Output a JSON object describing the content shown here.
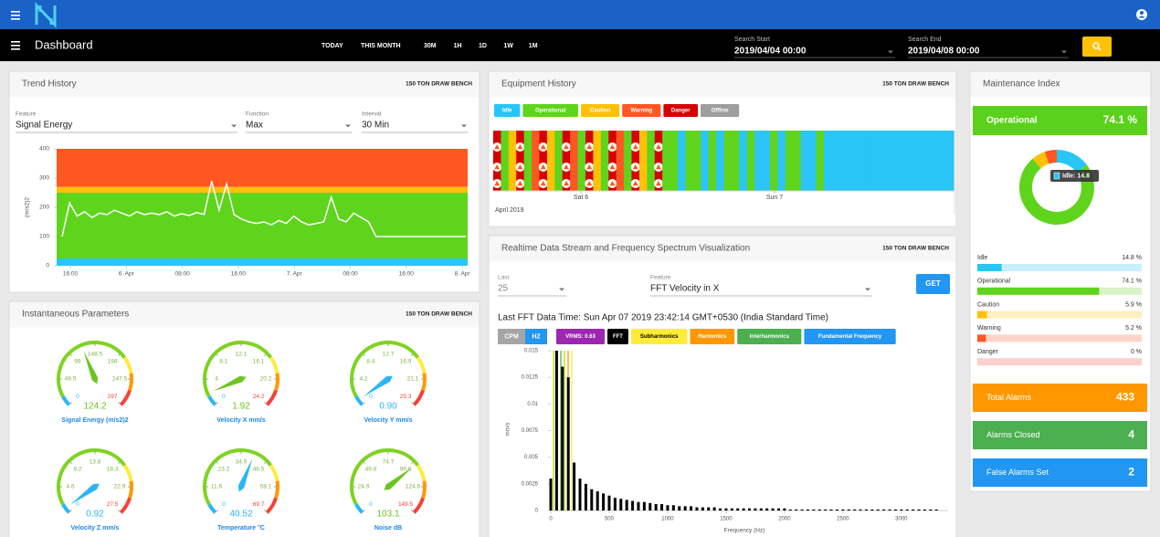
{
  "toolbar": {
    "title": "Dashboard",
    "ranges": [
      "TODAY",
      "THIS MONTH",
      "30M",
      "1H",
      "1D",
      "1W",
      "1M"
    ],
    "search_start": {
      "label": "Search Start",
      "value": "2019/04/04 00:00"
    },
    "search_end": {
      "label": "Search End",
      "value": "2019/04/08 00:00"
    }
  },
  "trend": {
    "title": "Trend History",
    "device": "150 TON DRAW BENCH",
    "filters": [
      {
        "label": "Feature",
        "value": "Signal Energy"
      },
      {
        "label": "Function",
        "value": "Max"
      },
      {
        "label": "Interval",
        "value": "30 Min"
      }
    ],
    "chart": {
      "type": "line",
      "ylabel": "(m/s2)2",
      "ylim": [
        0,
        400
      ],
      "yticks": [
        0,
        100,
        200,
        300,
        400
      ],
      "xticks": [
        "16:00",
        "6. Apr",
        "08:00",
        "16:00",
        "7. Apr",
        "08:00",
        "16:00",
        "8. Apr"
      ],
      "zones": [
        {
          "from": 0,
          "to": 25,
          "color": "#29c5f6"
        },
        {
          "from": 25,
          "to": 250,
          "color": "#5fd41c"
        },
        {
          "from": 250,
          "to": 270,
          "color": "#ffc107"
        },
        {
          "from": 270,
          "to": 400,
          "color": "#ff5722"
        }
      ],
      "color": "#ffffff",
      "values": [
        100,
        215,
        170,
        185,
        165,
        180,
        175,
        190,
        180,
        170,
        185,
        175,
        180,
        175,
        185,
        170,
        178,
        172,
        182,
        176,
        290,
        190,
        280,
        175,
        160,
        150,
        145,
        150,
        140,
        155,
        145,
        170,
        150,
        140,
        145,
        150,
        235,
        160,
        150,
        180,
        165,
        150,
        100,
        100,
        100,
        100,
        100,
        100,
        100,
        100,
        100,
        100,
        100,
        100,
        100
      ]
    }
  },
  "instant": {
    "title": "Instantaneous Parameters",
    "device": "150 TON DRAW BENCH",
    "gauges": [
      {
        "name": "Signal Energy (m/s2)2",
        "value": "124.2",
        "ticks": [
          "0",
          "49.5",
          "99",
          "148.5",
          "198",
          "247.5",
          "297"
        ],
        "color": "#6cc51f"
      },
      {
        "name": "Velocity X mm/s",
        "value": "1.92",
        "ticks": [
          "0",
          "4",
          "8.1",
          "12.1",
          "16.1",
          "20.2",
          "24.2"
        ],
        "color": "#6cc51f"
      },
      {
        "name": "Velocity Y mm/s",
        "value": "0.90",
        "ticks": [
          "0",
          "4.2",
          "8.4",
          "12.7",
          "16.9",
          "21.1",
          "25.3"
        ],
        "color": "#29b6f6"
      },
      {
        "name": "Velocity Z mm/s",
        "value": "0.92",
        "ticks": [
          "0",
          "4.6",
          "9.2",
          "13.8",
          "18.3",
          "22.9",
          "27.5"
        ],
        "color": "#29b6f6"
      },
      {
        "name": "Temperature °C",
        "value": "40.52",
        "ticks": [
          "0",
          "11.6",
          "23.2",
          "34.9",
          "46.5",
          "58.1",
          "69.7"
        ],
        "color": "#29b6f6"
      },
      {
        "name": "Noise dB",
        "value": "103.1",
        "ticks": [
          "0",
          "24.9",
          "49.8",
          "74.7",
          "99.6",
          "124.6",
          "149.5"
        ],
        "color": "#6cc51f"
      }
    ]
  },
  "equipment": {
    "title": "Equipment History",
    "device": "150 TON DRAW BENCH",
    "legend": [
      {
        "name": "Idle",
        "color": "#29c5f6"
      },
      {
        "name": "Operational",
        "color": "#5fd41c"
      },
      {
        "name": "Caution",
        "color": "#ffc107"
      },
      {
        "name": "Warning",
        "color": "#ff5722"
      },
      {
        "name": "Danger",
        "color": "#d50000"
      },
      {
        "name": "Offline",
        "color": "#9e9e9e"
      }
    ],
    "timeline": [
      "Danger",
      "Operational",
      "Caution",
      "Danger",
      "Operational",
      "Warning",
      "Danger",
      "Caution",
      "Operational",
      "Danger",
      "Warning",
      "Operational",
      "Danger",
      "Caution",
      "Operational",
      "Danger",
      "Warning",
      "Operational",
      "Danger",
      "Caution",
      "Operational",
      "Danger",
      "Operational",
      "Operational",
      "Idle",
      "Operational",
      "Operational",
      "Idle",
      "Operational",
      "Idle",
      "Operational",
      "Operational",
      "Idle",
      "Operational",
      "Idle",
      "Idle",
      "Operational",
      "Idle",
      "Operational",
      "Operational",
      "Idle",
      "Idle",
      "Operational",
      "Idle",
      "Idle",
      "Idle",
      "Idle",
      "Idle",
      "Idle",
      "Idle",
      "Idle",
      "Idle",
      "Idle",
      "Idle",
      "Idle",
      "Idle",
      "Idle",
      "Idle",
      "Idle",
      "Idle"
    ],
    "xticks": [
      "Sat 6",
      "Sun 7"
    ],
    "period": "April 2019"
  },
  "realtime": {
    "title": "Realtime Data Stream and Frequency Spectrum Visualization",
    "device": "150 TON DRAW BENCH",
    "last": {
      "label": "Last",
      "value": "25"
    },
    "feature": {
      "label": "Feature",
      "value": "FFT Velocity in X"
    },
    "button": "GET",
    "timestamp": "Last FFT Data Time: Sun Apr 07 2019 23:42:14 GMT+0530 (India Standard Time)",
    "units": [
      {
        "name": "CPM",
        "color": "#a5a5a5"
      },
      {
        "name": "HZ",
        "color": "#2196f3"
      }
    ],
    "chips": [
      {
        "name": "VRMS: 0.63",
        "color": "#9c27b0"
      },
      {
        "name": "FFT",
        "color": "#000000"
      },
      {
        "name": "Subharmonics",
        "color": "#ffeb3b"
      },
      {
        "name": "Harmonics",
        "color": "#ff9800"
      },
      {
        "name": "Interharmonics",
        "color": "#4caf50"
      },
      {
        "name": "Fundamental Frequency",
        "color": "#2196f3"
      }
    ],
    "chart": {
      "type": "bar",
      "xlabel": "Frequency (Hz)",
      "ylabel": "mm/s",
      "xlim": [
        0,
        3400
      ],
      "xticks": [
        0,
        500,
        1000,
        1500,
        2000,
        2500,
        3000
      ],
      "ylim": [
        0,
        0.015
      ],
      "yticks": [
        0,
        0.0025,
        0.005,
        0.0075,
        0.01,
        0.0125,
        0.015
      ],
      "color": "#000000",
      "x": [
        0,
        50,
        100,
        150,
        200,
        250,
        300,
        350,
        400,
        450,
        500,
        550,
        600,
        650,
        700,
        750,
        800,
        850,
        900,
        950,
        1000,
        1050,
        1100,
        1150,
        1200,
        1250,
        1300,
        1350,
        1400,
        1450,
        1500,
        1550,
        1600,
        1650,
        1700,
        1750,
        1800,
        1850,
        1900,
        1950,
        2000,
        2050,
        2100,
        2150,
        2200,
        2250,
        2300,
        2350,
        2400,
        2450,
        2500,
        2550,
        2600,
        2650,
        2700,
        2750,
        2800,
        2850,
        2900,
        2950,
        3000,
        3050,
        3100,
        3150,
        3200,
        3250,
        3300
      ],
      "values": [
        0.003,
        0.015,
        0.0135,
        0.0125,
        0.0045,
        0.003,
        0.0025,
        0.002,
        0.0018,
        0.0016,
        0.0014,
        0.0012,
        0.0011,
        0.001,
        0.0009,
        0.0008,
        0.0008,
        0.0007,
        0.0006,
        0.0006,
        0.0005,
        0.0005,
        0.0004,
        0.0004,
        0.0004,
        0.0003,
        0.0003,
        0.0003,
        0.0003,
        0.0002,
        0.0002,
        0.0002,
        0.0002,
        0.0002,
        0.0002,
        0.0002,
        0.0002,
        0.0002,
        0.0002,
        0.0002,
        0.0002,
        0.0001,
        0.0001,
        0.0001,
        0.0001,
        0.0001,
        0.0001,
        0.0001,
        0.0001,
        0.0001,
        0.0001,
        0.0001,
        0.0001,
        0.0001,
        0.0001,
        0.0001,
        0.0001,
        0.0001,
        0.0001,
        0.0001,
        0.0001,
        0.0001,
        0.0001,
        0.0001,
        0.0001,
        0.0001,
        0.0001
      ]
    }
  },
  "maintenance": {
    "title": "Maintenance Index",
    "banner": {
      "label": "Operational",
      "value": "74.1 %"
    },
    "tooltip": "Idle: 14.8",
    "states": {
      "categories": [
        "Idle",
        "Operational",
        "Caution",
        "Warning",
        "Danger"
      ],
      "values": [
        14.8,
        74.1,
        5.9,
        5.2,
        0
      ],
      "value_labels": [
        "14.8 %",
        "74.1 %",
        "5.9 %",
        "5.2 %",
        "0 %"
      ],
      "colors": [
        "#29c5f6",
        "#5fd41c",
        "#ffc107",
        "#ff5722",
        "#f44336"
      ]
    },
    "cards": [
      {
        "label": "Total Alarms",
        "value": 433,
        "color": "#ff9800"
      },
      {
        "label": "Alarms Closed",
        "value": 4,
        "color": "#4caf50"
      },
      {
        "label": "False Alarms Set",
        "value": 2,
        "color": "#2196f3"
      }
    ]
  }
}
